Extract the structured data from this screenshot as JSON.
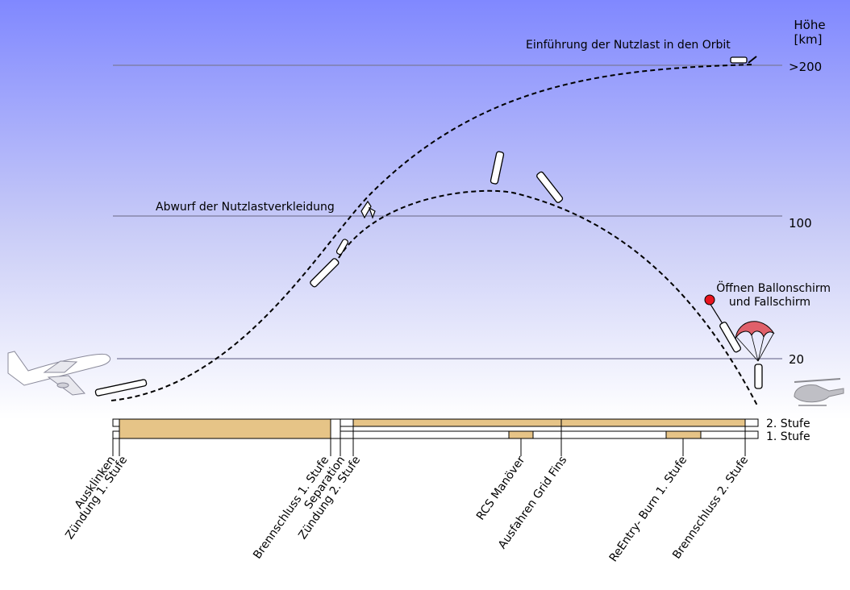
{
  "axis": {
    "title_line1": "Höhe",
    "title_line2": "[km]",
    "levels": [
      {
        "label": ">200"
      },
      {
        "label": "100"
      },
      {
        "label": "20"
      }
    ]
  },
  "annotations": {
    "orbit": "Einführung der Nutzlast in den Orbit",
    "fairing": "Abwurf der Nutzlastverkleidung",
    "parachute_line1": "Öffnen Ballonschirm",
    "parachute_line2": "und Fallschirm"
  },
  "stages": {
    "stage2": "2. Stufe",
    "stage1": "1. Stufe"
  },
  "events": [
    "Ausklinken",
    "Zündung 1. Stufe",
    "Brennschluss 1. Stufe",
    "Separation",
    "Zündung 2. Stufe",
    "RCS Manöver",
    "Ausfahren Grid Fins",
    "ReEntry- Burn 1. Stufe",
    "Brennschluss 2. Stufe"
  ],
  "colors": {
    "sky_top": "#8088ff",
    "sky_bottom": "#ffffff",
    "burn": "#e6c487",
    "canopy": "#e0606a",
    "balloon": "#e8141e"
  }
}
